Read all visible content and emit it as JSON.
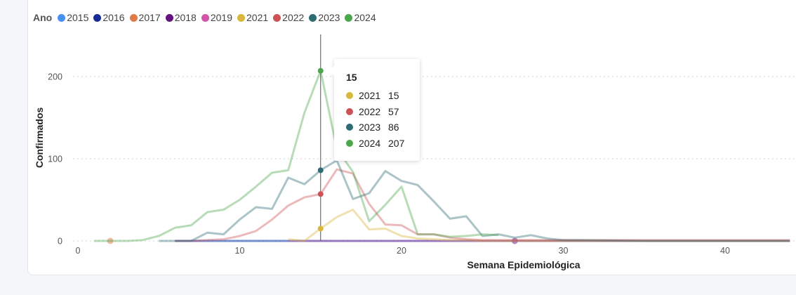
{
  "legend": {
    "title": "Ano",
    "items": [
      {
        "label": "2015",
        "color": "#4a90f0"
      },
      {
        "label": "2016",
        "color": "#152b96"
      },
      {
        "label": "2017",
        "color": "#e07a46"
      },
      {
        "label": "2018",
        "color": "#651080"
      },
      {
        "label": "2019",
        "color": "#d354a8"
      },
      {
        "label": "2021",
        "color": "#d9b73a"
      },
      {
        "label": "2022",
        "color": "#cc5257"
      },
      {
        "label": "2023",
        "color": "#2e6b73"
      },
      {
        "label": "2024",
        "color": "#4aa84a"
      }
    ]
  },
  "tooltip": {
    "title": "15",
    "rows": [
      {
        "year": "2021",
        "value": "15",
        "color": "#d9b73a"
      },
      {
        "year": "2022",
        "value": "57",
        "color": "#cc5257"
      },
      {
        "year": "2023",
        "value": "86",
        "color": "#2e6b73"
      },
      {
        "year": "2024",
        "value": "207",
        "color": "#4aa84a"
      }
    ]
  },
  "chart_data": {
    "type": "line",
    "title": "",
    "xlabel": "Semana Epidemiológica",
    "ylabel": "Confirmados",
    "xlim": [
      0,
      44
    ],
    "ylim": [
      0,
      230
    ],
    "x_ticks": [
      0,
      10,
      20,
      30,
      40
    ],
    "y_ticks": [
      0,
      100,
      200
    ],
    "grid": "horizontal-dotted",
    "legend_position": "top-left",
    "hover_week": 15,
    "series": [
      {
        "name": "2015",
        "color": "#4a90f0",
        "x": [
          6,
          44
        ],
        "y": [
          0,
          0
        ]
      },
      {
        "name": "2016",
        "color": "#152b96",
        "x": [
          6,
          44
        ],
        "y": [
          0,
          0
        ]
      },
      {
        "name": "2017",
        "color": "#e07a46",
        "x": [
          2
        ],
        "y": [
          0
        ]
      },
      {
        "name": "2018",
        "color": "#651080",
        "x": [
          27
        ],
        "y": [
          0
        ]
      },
      {
        "name": "2019",
        "color": "#d354a8",
        "x": [
          13,
          44
        ],
        "y": [
          0,
          0
        ]
      },
      {
        "name": "2021",
        "color": "#d9b73a",
        "x": [
          13,
          14,
          15,
          16,
          17,
          18,
          19,
          20,
          21,
          22,
          23,
          24,
          25,
          26,
          27,
          28,
          29,
          30,
          35,
          40,
          44
        ],
        "y": [
          2,
          0,
          15,
          29,
          38,
          14,
          15,
          6,
          3,
          2,
          1,
          1,
          0,
          0,
          0,
          0,
          0,
          0,
          0,
          0,
          0
        ]
      },
      {
        "name": "2022",
        "color": "#cc5257",
        "x": [
          6,
          7,
          8,
          9,
          10,
          11,
          12,
          13,
          14,
          15,
          16,
          17,
          18,
          19,
          20,
          21,
          22,
          23,
          24,
          25,
          26,
          27,
          28,
          29,
          30,
          35,
          40,
          44
        ],
        "y": [
          0,
          0,
          1,
          2,
          6,
          12,
          26,
          43,
          53,
          57,
          87,
          82,
          45,
          20,
          19,
          8,
          8,
          4,
          2,
          1,
          1,
          1,
          1,
          1,
          1,
          1,
          1,
          1
        ]
      },
      {
        "name": "2023",
        "color": "#2e6b73",
        "x": [
          5,
          6,
          7,
          8,
          9,
          10,
          11,
          12,
          13,
          14,
          15,
          16,
          17,
          18,
          19,
          20,
          21,
          22,
          23,
          24,
          25,
          26,
          27,
          28,
          29,
          30,
          31,
          35,
          40,
          44
        ],
        "y": [
          0,
          0,
          0,
          10,
          8,
          26,
          41,
          39,
          77,
          69,
          86,
          98,
          51,
          58,
          85,
          73,
          68,
          48,
          27,
          30,
          6,
          8,
          4,
          7,
          3,
          1,
          1,
          0,
          0,
          0
        ]
      },
      {
        "name": "2024",
        "color": "#4aa84a",
        "x": [
          1,
          2,
          3,
          4,
          5,
          6,
          7,
          8,
          9,
          10,
          11,
          12,
          13,
          14,
          15,
          16,
          17,
          18,
          19,
          20,
          21,
          22,
          23,
          24,
          25,
          26
        ],
        "y": [
          0,
          0,
          0,
          1,
          6,
          16,
          19,
          35,
          38,
          50,
          66,
          83,
          86,
          156,
          207,
          112,
          84,
          24,
          44,
          66,
          8,
          8,
          5,
          6,
          8,
          7
        ]
      }
    ]
  }
}
